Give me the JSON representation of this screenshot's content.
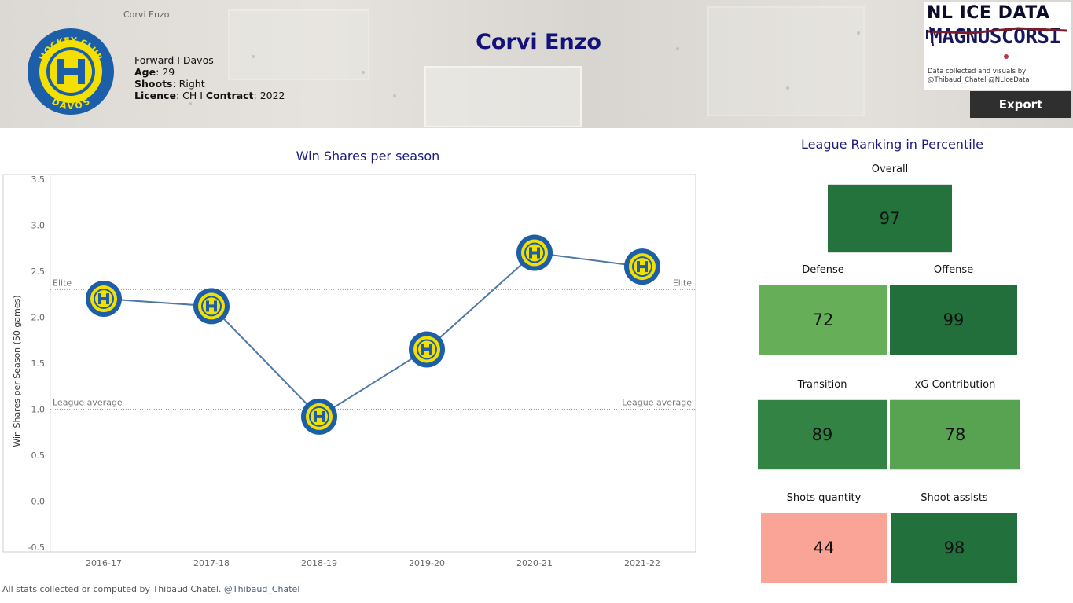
{
  "header": {
    "small_name": "Corvi Enzo",
    "title": "Corvi Enzo",
    "role_team": "Forward I Davos",
    "age_label": "Age",
    "age_value": ": 29",
    "shoots_label": "Shoots",
    "shoots_value": ": Right",
    "licence_label": "Licence",
    "licence_value": ": CH I ",
    "contract_label": "Contract",
    "contract_value": ": 2022"
  },
  "club_logo": {
    "top_text": "HOCKEY CLUB",
    "bottom_text": "DAVOS",
    "colors": {
      "blue": "#1c5fa8",
      "yellow": "#f3e000"
    }
  },
  "brand": {
    "line1": "NL ICE DATA",
    "line2": "MAGNUSCORSI",
    "note_line1": "Data collected and visuals by",
    "note_line2": "@Thibaud_Chatel @NLIceData"
  },
  "export_label": "Export",
  "chart_data": {
    "type": "line",
    "title": "Win Shares per season",
    "ylabel": "Win Shares per Season (50 games)",
    "categories": [
      "2016-17",
      "2017-18",
      "2018-19",
      "2019-20",
      "2020-21",
      "2021-22"
    ],
    "values": [
      2.2,
      2.12,
      0.92,
      1.65,
      2.7,
      2.55
    ],
    "ylim": [
      -0.55,
      3.55
    ],
    "yticks": [
      "3.5",
      "3.0",
      "2.5",
      "2.0",
      "1.5",
      "1.0",
      "0.5",
      "0.0",
      "-0.5"
    ],
    "ytick_values": [
      3.5,
      3.0,
      2.5,
      2.0,
      1.5,
      1.0,
      0.5,
      0.0,
      -0.5
    ],
    "reference_lines": [
      {
        "label": "Elite",
        "value": 2.3
      },
      {
        "label": "League average",
        "value": 1.0
      }
    ],
    "line_color": "#4e79a7",
    "marker": "club-logo"
  },
  "percentile": {
    "title": "League Ranking in Percentile",
    "tiles": [
      {
        "label": "Overall",
        "value": "97",
        "color": "#24723c"
      },
      {
        "label": "Defense",
        "value": "72",
        "color": "#66ae58"
      },
      {
        "label": "Offense",
        "value": "99",
        "color": "#226f3b"
      },
      {
        "label": "Transition",
        "value": "89",
        "color": "#338444"
      },
      {
        "label": "xG Contribution",
        "value": "78",
        "color": "#58a352"
      },
      {
        "label": "Shots quantity",
        "value": "44",
        "color": "#f9a496"
      },
      {
        "label": "Shoot assists",
        "value": "98",
        "color": "#22703b"
      }
    ]
  },
  "footer": {
    "text": "All stats collected or computed by Thibaud Chatel. ",
    "handle": "@Thibaud_Chatel"
  }
}
